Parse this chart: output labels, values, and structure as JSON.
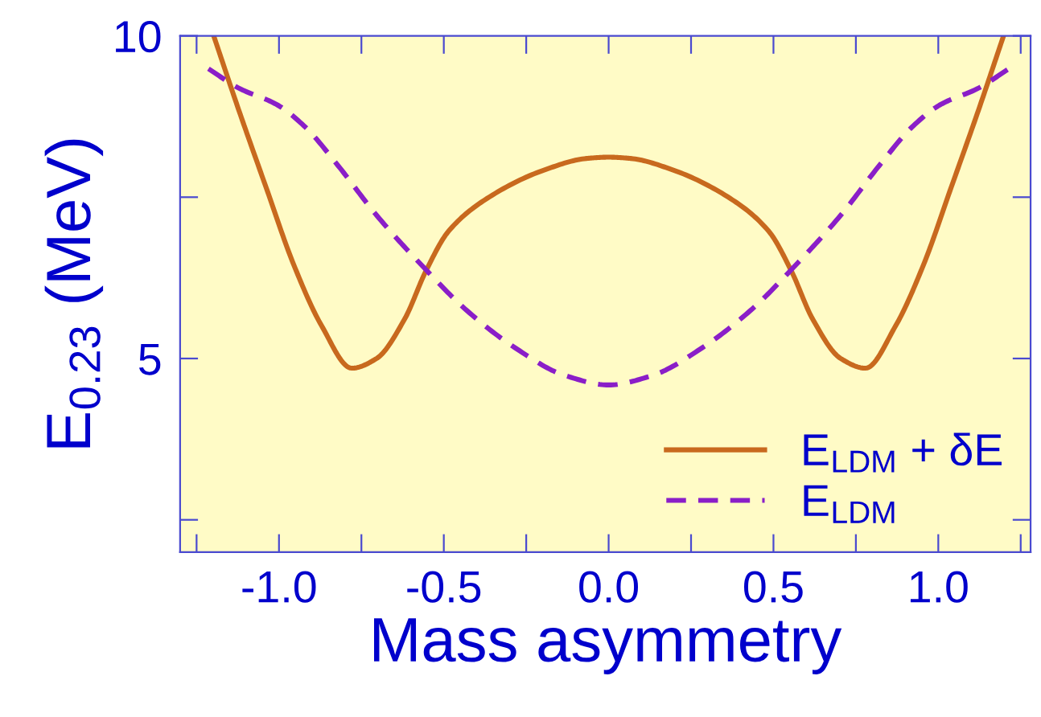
{
  "chart_data": {
    "type": "line",
    "xlabel": "Mass asymmetry",
    "ylabel": "E$_{0.23}$ (MeV)",
    "xlim": [
      -1.3,
      1.28
    ],
    "ylim": [
      2,
      10
    ],
    "xticks": [
      {
        "value": -1.25,
        "label": null
      },
      {
        "value": -1,
        "label": "-1.0"
      },
      {
        "value": -0.75,
        "label": null
      },
      {
        "value": -0.5,
        "label": "-0.5"
      },
      {
        "value": -0.25,
        "label": null
      },
      {
        "value": 0,
        "label": "0.0"
      },
      {
        "value": 0.25,
        "label": null
      },
      {
        "value": 0.5,
        "label": "0.5"
      },
      {
        "value": 0.75,
        "label": null
      },
      {
        "value": 1,
        "label": "1.0"
      },
      {
        "value": 1.25,
        "label": null
      }
    ],
    "yticks": [
      {
        "value": 2.5,
        "label": null
      },
      5,
      {
        "value": 7.5,
        "label": null
      },
      10
    ],
    "legend": "lower right",
    "series": [
      {
        "name": "E$_{LDM}$ + δE",
        "color": "#c8691e",
        "line_style": "solid",
        "x": [
          -1.198,
          -1.122,
          -1.039,
          -0.955,
          -0.871,
          -0.779,
          -0.704,
          -0.62,
          -0.553,
          -0.486,
          -0.369,
          -0.201,
          -0.067,
          0,
          0.067,
          0.201,
          0.369,
          0.486,
          0.553,
          0.62,
          0.704,
          0.779,
          0.871,
          0.955,
          1.039,
          1.122,
          1.198
        ],
        "values": [
          10.0,
          8.85,
          7.65,
          6.45,
          5.51,
          4.85,
          5.0,
          5.6,
          6.37,
          6.97,
          7.48,
          7.91,
          8.1,
          8.12,
          8.1,
          7.91,
          7.48,
          6.97,
          6.37,
          5.6,
          5.0,
          4.85,
          5.51,
          6.45,
          7.65,
          8.85,
          10.0
        ]
      },
      {
        "name": "E$_{LDM}$",
        "color": "#8a1ec8",
        "line_style": "dashed",
        "x": [
          -1.214,
          -1.122,
          -1.005,
          -0.921,
          -0.821,
          -0.704,
          -0.553,
          -0.436,
          -0.285,
          -0.134,
          0,
          0.134,
          0.285,
          0.436,
          0.553,
          0.704,
          0.821,
          0.921,
          1.005,
          1.122,
          1.214
        ],
        "values": [
          9.49,
          9.19,
          8.93,
          8.59,
          7.99,
          7.22,
          6.37,
          5.77,
          5.17,
          4.74,
          4.59,
          4.74,
          5.17,
          5.77,
          6.37,
          7.22,
          7.99,
          8.59,
          8.93,
          9.19,
          9.49
        ]
      }
    ]
  }
}
